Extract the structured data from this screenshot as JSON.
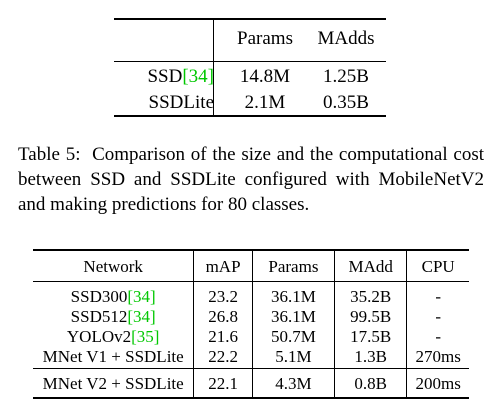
{
  "table5": {
    "headers": [
      "",
      "Params",
      "MAdds"
    ],
    "rows": [
      {
        "name": "SSD",
        "cite": "[34]",
        "params": "14.8M",
        "madds": "1.25B"
      },
      {
        "name": "SSDLite",
        "cite": "",
        "params": "2.1M",
        "madds": "0.35B"
      }
    ]
  },
  "caption": {
    "label": "Table 5:",
    "text": "Comparison of the size and the computational cost between SSD and SSDLite configured with MobileNetV2 and making predictions for 80 classes."
  },
  "table6": {
    "headers": [
      "Network",
      "mAP",
      "Params",
      "MAdd",
      "CPU"
    ],
    "rows": [
      {
        "network": "SSD300",
        "cite": "[34]",
        "map": "23.2",
        "params": "36.1M",
        "madd": "35.2B",
        "cpu": "-"
      },
      {
        "network": "SSD512",
        "cite": "[34]",
        "map": "26.8",
        "params": "36.1M",
        "madd": "99.5B",
        "cpu": "-"
      },
      {
        "network": "YOLOv2",
        "cite": "[35]",
        "map": "21.6",
        "params": "50.7M",
        "madd": "17.5B",
        "cpu": "-"
      },
      {
        "network": "MNet V1 + SSDLite",
        "cite": "",
        "map": "22.2",
        "params": "5.1M",
        "madd": "1.3B",
        "cpu": "270ms"
      }
    ],
    "highlight_row": {
      "network": "MNet V2 + SSDLite",
      "map": "22.1",
      "params": "4.3M",
      "madd": "0.8B",
      "cpu": "200ms"
    }
  },
  "colors": {
    "citation": "#00c800",
    "text": "#000000"
  }
}
